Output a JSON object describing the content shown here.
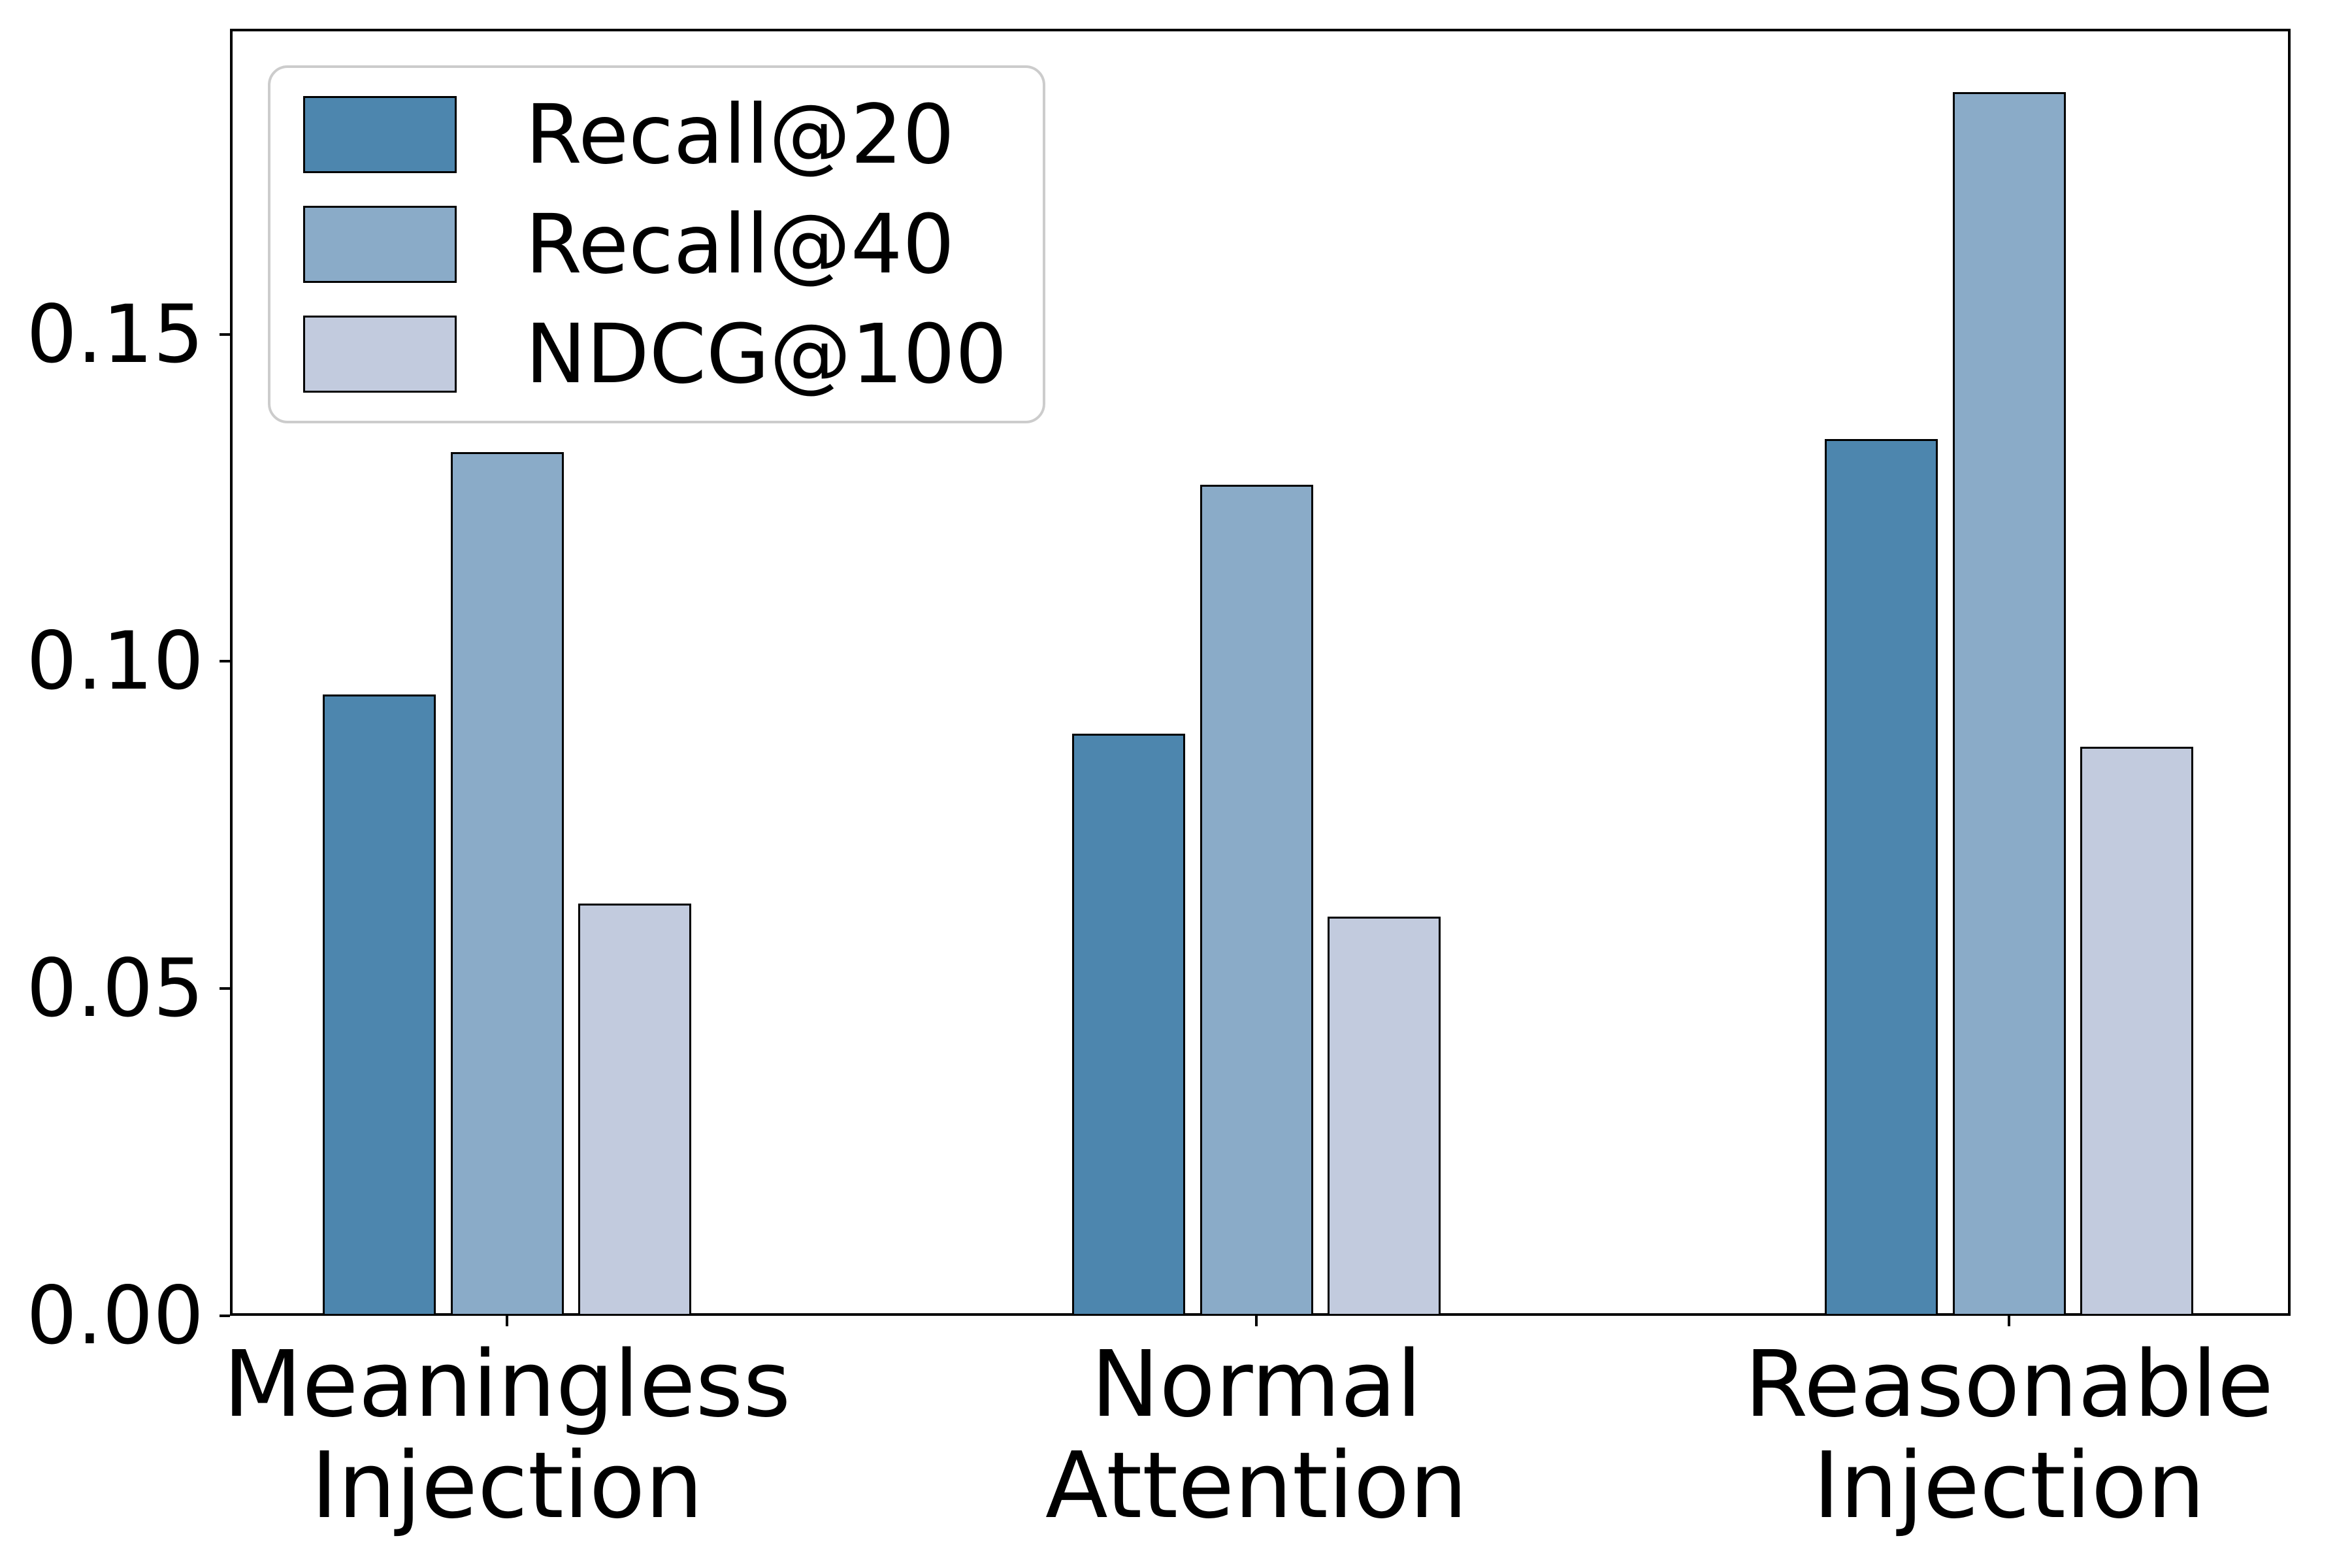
{
  "chart_data": {
    "type": "bar",
    "title": "",
    "xlabel": "",
    "ylabel": "",
    "categories": [
      "Meaningless\nInjection",
      "Normal\nAttention",
      "Reasonable\nInjection"
    ],
    "series": [
      {
        "name": "Recall@20",
        "color": "#4d86ae",
        "values": [
          0.095,
          0.089,
          0.134
        ]
      },
      {
        "name": "Recall@40",
        "color": "#8aabc8",
        "values": [
          0.132,
          0.127,
          0.187
        ]
      },
      {
        "name": "NDCG@100",
        "color": "#c2cbde",
        "values": [
          0.063,
          0.061,
          0.087
        ]
      }
    ],
    "y_ticks": [
      0.0,
      0.05,
      0.1,
      0.15
    ],
    "y_tick_labels": [
      "0.00",
      "0.05",
      "0.10",
      "0.15"
    ],
    "ylim": [
      0,
      0.1967
    ],
    "grid": false,
    "legend_position": "upper left",
    "bar_edge_color": "#000000",
    "axes_edge_color": "#000000",
    "background_color": "#ffffff"
  }
}
